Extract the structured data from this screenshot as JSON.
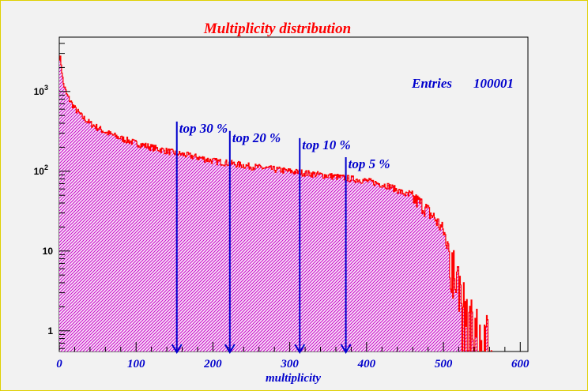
{
  "chart_data": {
    "type": "histogram",
    "title": "Multiplicity distribution",
    "xlabel": "multiplicity",
    "ylabel": "",
    "xlim": [
      0,
      610
    ],
    "ylim": [
      0.55,
      4800
    ],
    "y_scale": "log",
    "x_ticks": [
      0,
      100,
      200,
      300,
      400,
      500,
      600
    ],
    "y_ticks": [
      {
        "value": 1,
        "label": "1"
      },
      {
        "value": 10,
        "label": "10"
      },
      {
        "value": 100,
        "label": "10",
        "exp": "2"
      },
      {
        "value": 1000,
        "label": "10",
        "exp": "3"
      }
    ],
    "stats": {
      "label": "Entries",
      "value": "100001"
    },
    "series_profile": [
      [
        0,
        2800
      ],
      [
        2,
        2500
      ],
      [
        5,
        1300
      ],
      [
        10,
        900
      ],
      [
        20,
        620
      ],
      [
        30,
        480
      ],
      [
        40,
        400
      ],
      [
        60,
        310
      ],
      [
        80,
        260
      ],
      [
        100,
        225
      ],
      [
        120,
        200
      ],
      [
        150,
        170
      ],
      [
        180,
        150
      ],
      [
        200,
        135
      ],
      [
        250,
        115
      ],
      [
        300,
        100
      ],
      [
        350,
        88
      ],
      [
        400,
        76
      ],
      [
        430,
        65
      ],
      [
        450,
        52
      ],
      [
        470,
        40
      ],
      [
        490,
        25
      ],
      [
        500,
        18
      ],
      [
        510,
        9
      ],
      [
        520,
        4
      ],
      [
        530,
        2
      ],
      [
        540,
        1.2
      ],
      [
        560,
        0.9
      ],
      [
        570,
        0
      ]
    ],
    "annotations": [
      {
        "label": "top 30 %",
        "x": 153,
        "top_y": 420
      },
      {
        "label": "top 20 %",
        "x": 222,
        "top_y": 320
      },
      {
        "label": "top 10 %",
        "x": 313,
        "top_y": 260
      },
      {
        "label": "top 5 %",
        "x": 373,
        "top_y": 150
      }
    ],
    "colors": {
      "line": "#ff0000",
      "fill": "#cc00cc",
      "annotation": "#0000cc",
      "title": "#ff0000"
    }
  }
}
